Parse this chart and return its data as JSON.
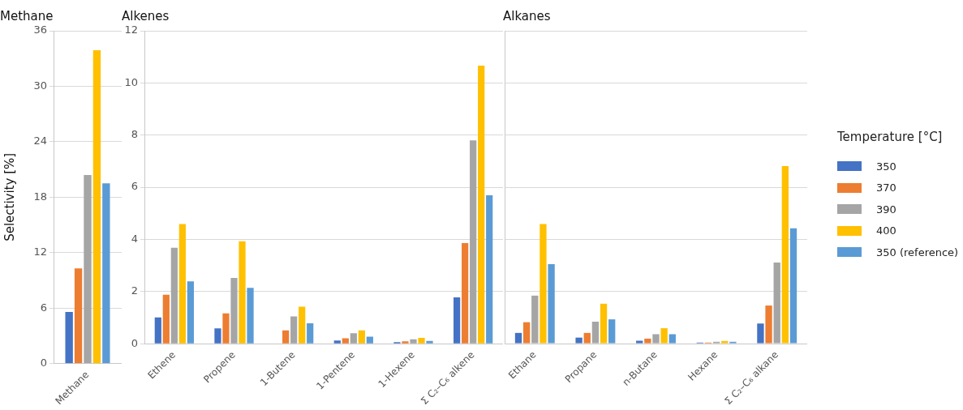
{
  "chart_data": [
    {
      "type": "bar",
      "title": "Methane",
      "ylabel": "Selectivity [%]",
      "categories": [
        "Methane"
      ],
      "ylim": [
        0,
        36
      ],
      "yticks": [
        0,
        6,
        12,
        18,
        24,
        30,
        36
      ],
      "grid": "y",
      "legend": "right",
      "legend_title": "Temperature [°C]",
      "series": [
        {
          "name": "350",
          "color": "#4472c4",
          "values": [
            5.6
          ]
        },
        {
          "name": "370",
          "color": "#ed7d31",
          "values": [
            10.3
          ]
        },
        {
          "name": "390",
          "color": "#a5a5a5",
          "values": [
            20.4
          ]
        },
        {
          "name": "400",
          "color": "#ffc000",
          "values": [
            33.9
          ]
        },
        {
          "name": "350 (reference)",
          "color": "#5b9bd5",
          "values": [
            19.5
          ]
        }
      ]
    },
    {
      "type": "bar",
      "title": "Alkenes",
      "categories": [
        "Ethene",
        "Propene",
        "1-Butene",
        "1-Pentene",
        "1-Hexene",
        "Σ C₂–C₆ alkene"
      ],
      "ylim": [
        0,
        12
      ],
      "yticks": [
        0,
        2,
        4,
        6,
        8,
        10,
        12
      ],
      "grid": "y",
      "series": [
        {
          "color": "#4472c4",
          "values": [
            1.01,
            0.59,
            null,
            0.12,
            0.06,
            1.78
          ]
        },
        {
          "color": "#ed7d31",
          "values": [
            1.88,
            1.16,
            0.51,
            0.21,
            0.09,
            3.86
          ]
        },
        {
          "color": "#a5a5a5",
          "values": [
            3.68,
            2.52,
            1.05,
            0.4,
            0.17,
            7.8
          ]
        },
        {
          "color": "#ffc000",
          "values": [
            4.59,
            3.93,
            1.42,
            0.51,
            0.22,
            10.66
          ]
        },
        {
          "color": "#5b9bd5",
          "values": [
            2.39,
            2.14,
            0.78,
            0.27,
            0.11,
            5.69
          ]
        }
      ]
    },
    {
      "type": "bar",
      "title": "Alkanes",
      "categories": [
        "Ethane",
        "Propane",
        "n-Butane",
        "Hexane",
        "Σ C₂–C₆ alkane"
      ],
      "ylim": [
        0,
        12
      ],
      "yticks": [
        0,
        2,
        4,
        6,
        8,
        10,
        12
      ],
      "grid": "y",
      "tick_labels": "x",
      "series": [
        {
          "color": "#4472c4",
          "values": [
            0.41,
            0.23,
            0.11,
            0.04,
            0.77
          ]
        },
        {
          "color": "#ed7d31",
          "values": [
            0.82,
            0.41,
            0.19,
            0.04,
            1.46
          ]
        },
        {
          "color": "#a5a5a5",
          "values": [
            1.84,
            0.84,
            0.36,
            0.07,
            3.11
          ]
        },
        {
          "color": "#ffc000",
          "values": [
            4.59,
            1.53,
            0.59,
            0.1,
            6.81
          ]
        },
        {
          "color": "#5b9bd5",
          "values": [
            3.05,
            0.93,
            0.36,
            0.07,
            4.42
          ]
        }
      ]
    }
  ]
}
